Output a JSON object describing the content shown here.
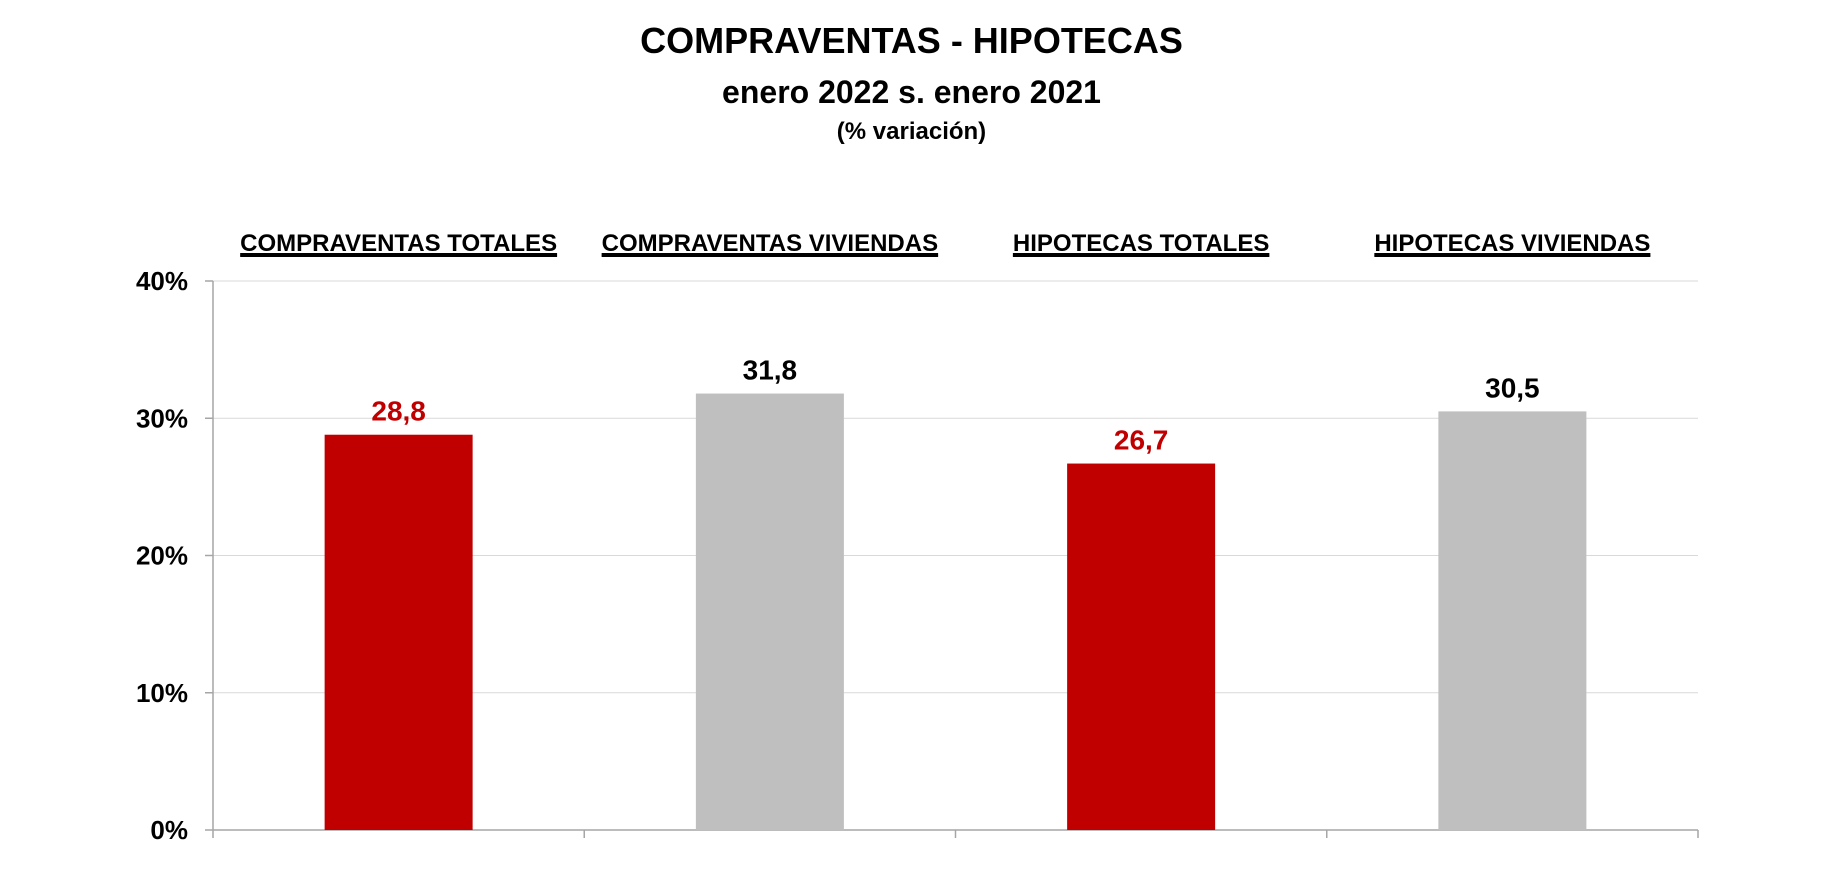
{
  "chart_data": {
    "type": "bar",
    "title": "COMPRAVENTAS - HIPOTECAS",
    "subtitle": "enero 2022  s. enero 2021",
    "unit_label": "(% variación)",
    "categories": [
      "COMPRAVENTAS TOTALES",
      "COMPRAVENTAS VIVIENDAS",
      "HIPOTECAS TOTALES",
      "HIPOTECAS VIVIENDAS"
    ],
    "values": [
      28.8,
      31.8,
      26.7,
      30.5
    ],
    "value_labels": [
      "28,8",
      "31,8",
      "26,7",
      "30,5"
    ],
    "bar_colors": [
      "#C00000",
      "#BFBFBF",
      "#C00000",
      "#BFBFBF"
    ],
    "label_colors": [
      "#C00000",
      "#000000",
      "#C00000",
      "#000000"
    ],
    "ylim": [
      0,
      40
    ],
    "yticks": [
      0,
      10,
      20,
      30,
      40
    ],
    "ytick_labels": [
      "0%",
      "10%",
      "20%",
      "30%",
      "40%"
    ],
    "category_label_position": "top",
    "grid": true,
    "gridline_color": "#D9D9D9",
    "axis_color": "#A6A6A6"
  }
}
